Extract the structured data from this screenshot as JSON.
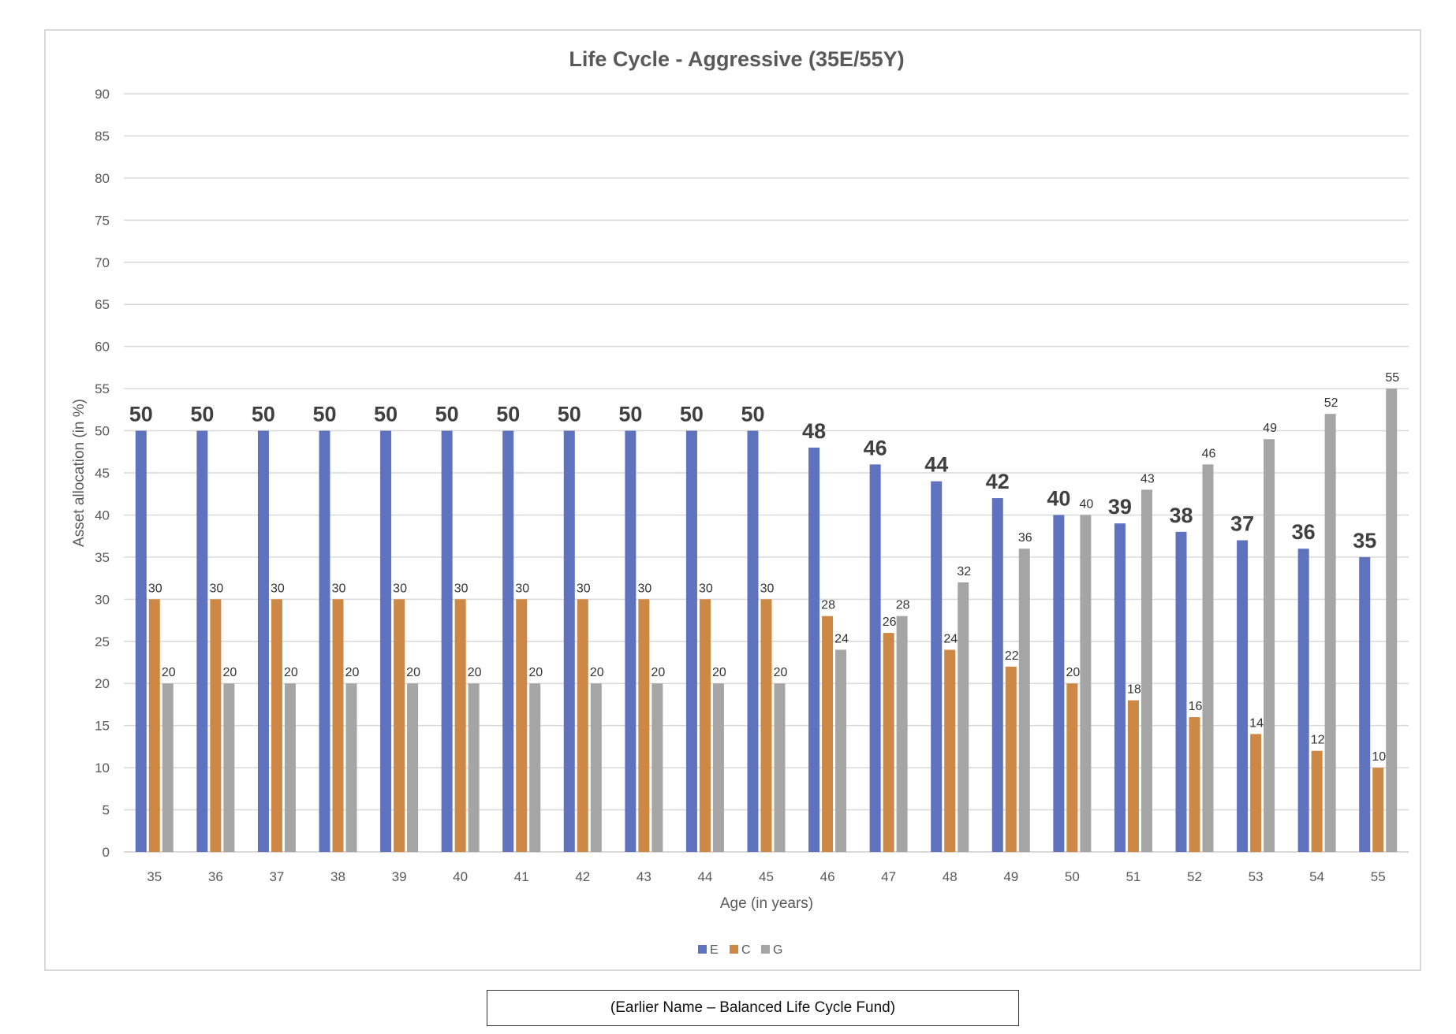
{
  "chart_data": {
    "type": "bar",
    "title": "Life Cycle - Aggressive (35E/55Y)",
    "xlabel": "Age (in years)",
    "ylabel": "Asset allocation (in %)",
    "ylim": [
      0,
      90
    ],
    "yticks": [
      0,
      5,
      10,
      15,
      20,
      25,
      30,
      35,
      40,
      45,
      50,
      55,
      60,
      65,
      70,
      75,
      80,
      85,
      90
    ],
    "grid": true,
    "legend_position": "bottom",
    "categories": [
      "35",
      "36",
      "37",
      "38",
      "39",
      "40",
      "41",
      "42",
      "43",
      "44",
      "45",
      "46",
      "47",
      "48",
      "49",
      "50",
      "51",
      "52",
      "53",
      "54",
      "55"
    ],
    "series": [
      {
        "name": "E",
        "color": "#5f72be",
        "label_style": "bold-large",
        "values": [
          50,
          50,
          50,
          50,
          50,
          50,
          50,
          50,
          50,
          50,
          50,
          48,
          46,
          44,
          42,
          40,
          39,
          38,
          37,
          36,
          35
        ]
      },
      {
        "name": "C",
        "color": "#cc8844",
        "label_style": "normal",
        "values": [
          30,
          30,
          30,
          30,
          30,
          30,
          30,
          30,
          30,
          30,
          30,
          28,
          26,
          24,
          22,
          20,
          18,
          16,
          14,
          12,
          10
        ]
      },
      {
        "name": "G",
        "color": "#a5a5a5",
        "label_style": "normal",
        "values": [
          20,
          20,
          20,
          20,
          20,
          20,
          20,
          20,
          20,
          20,
          20,
          24,
          28,
          32,
          36,
          40,
          43,
          46,
          49,
          52,
          55
        ]
      }
    ]
  },
  "note": "(Earlier Name – Balanced Life Cycle Fund)"
}
